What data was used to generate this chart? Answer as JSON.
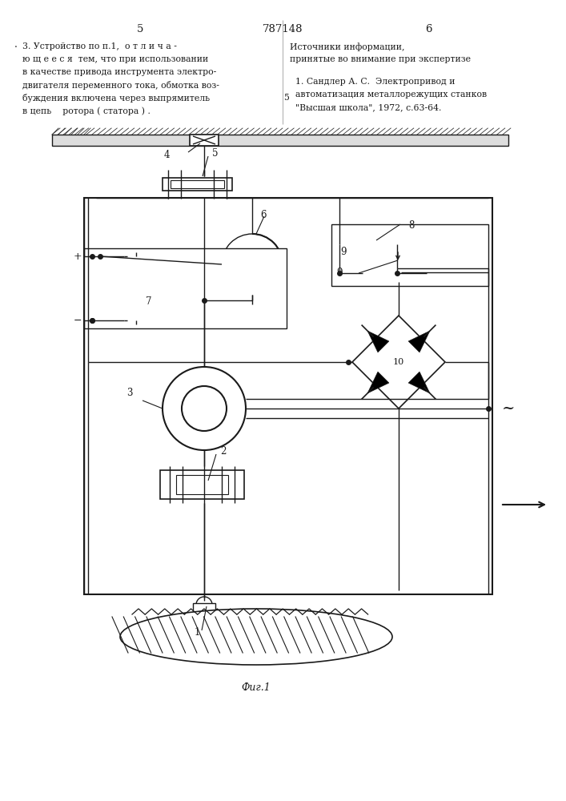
{
  "page_num_left": "5",
  "page_num_center": "787148",
  "page_num_right": "6",
  "left_text_line1": "3. Устройство по п.1,  о т л и ч а -",
  "left_text_line2": "ю щ е е с я  тем, что при использовании",
  "left_text_line3": "в качестве привода инструмента электро-",
  "left_text_line4": "двигателя переменного тока, обмотка воз-",
  "left_text_line5": "буждения включена через выпрямитель",
  "left_text_line6": "в цепь    ротора ( статора ) .",
  "right_header_line1": "Источники информации,",
  "right_header_line2": "принятые во внимание при экспертизе",
  "right_num": "5",
  "right_ref_line1": "1. Сандлер А. С.  Электропривод и",
  "right_ref_line2": "автоматизация металлорежущих станков",
  "right_ref_line3": "\"Высшая школа\", 1972, с.63-64.",
  "fig_label": "Фиг.1",
  "bg_color": "#ffffff",
  "lc": "#1a1a1a"
}
